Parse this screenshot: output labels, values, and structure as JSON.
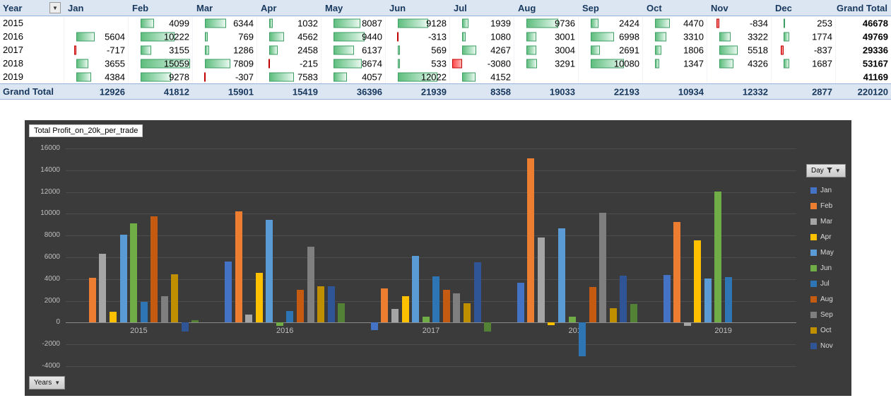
{
  "pivot": {
    "header": {
      "year_label": "Year",
      "months": [
        "Jan",
        "Feb",
        "Mar",
        "Apr",
        "May",
        "Jun",
        "Jul",
        "Aug",
        "Sep",
        "Oct",
        "Nov",
        "Dec"
      ],
      "grand_total_label": "Grand Total"
    },
    "rows": [
      {
        "year": "2015",
        "values": [
          null,
          4099,
          6344,
          1032,
          8087,
          9128,
          1939,
          9736,
          2424,
          4470,
          -834,
          253
        ],
        "total": 46678
      },
      {
        "year": "2016",
        "values": [
          5604,
          10222,
          769,
          4562,
          9440,
          -313,
          1080,
          3001,
          6998,
          3310,
          3322,
          1774
        ],
        "total": 49769
      },
      {
        "year": "2017",
        "values": [
          -717,
          3155,
          1286,
          2458,
          6137,
          569,
          4267,
          3004,
          2691,
          1806,
          5518,
          -837
        ],
        "total": 29336
      },
      {
        "year": "2018",
        "values": [
          3655,
          15059,
          7809,
          -215,
          8674,
          533,
          -3080,
          3291,
          10080,
          1347,
          4326,
          1687
        ],
        "total": 53167
      },
      {
        "year": "2019",
        "values": [
          4384,
          9278,
          -307,
          7583,
          4057,
          12022,
          4152,
          null,
          null,
          null,
          null,
          null
        ],
        "total": 41169
      }
    ],
    "grand_total_row": {
      "label": "Grand Total",
      "values": [
        12926,
        41812,
        15901,
        15419,
        36396,
        21939,
        8358,
        19033,
        22193,
        10934,
        12332,
        2877
      ],
      "total": 220120
    },
    "bar_colors": {
      "positive": "#5FBE7E",
      "negative": "#FF4B4B"
    }
  },
  "chart": {
    "title": "Total Profit_on_20k_per_trade",
    "years_button_label": "Years",
    "legend_button_label": "Day",
    "legend_items": [
      "Jan",
      "Feb",
      "Mar",
      "Apr",
      "May",
      "Jun",
      "Jul",
      "Aug",
      "Sep",
      "Oct",
      "Nov"
    ],
    "background": "#3B3B3B"
  },
  "chart_data": {
    "type": "bar",
    "title": "Total Profit_on_20k_per_trade",
    "categories": [
      "2015",
      "2016",
      "2017",
      "2018",
      "2019"
    ],
    "series": [
      {
        "name": "Jan",
        "color": "#4472C4",
        "values": [
          null,
          5604,
          -717,
          3655,
          4384
        ]
      },
      {
        "name": "Feb",
        "color": "#ED7D31",
        "values": [
          4099,
          10222,
          3155,
          15059,
          9278
        ]
      },
      {
        "name": "Mar",
        "color": "#A5A5A5",
        "values": [
          6344,
          769,
          1286,
          7809,
          -307
        ]
      },
      {
        "name": "Apr",
        "color": "#FFC000",
        "values": [
          1032,
          4562,
          2458,
          -215,
          7583
        ]
      },
      {
        "name": "May",
        "color": "#5B9BD5",
        "values": [
          8087,
          9440,
          6137,
          8674,
          4057
        ]
      },
      {
        "name": "Jun",
        "color": "#70AD47",
        "values": [
          9128,
          -313,
          569,
          533,
          12022
        ]
      },
      {
        "name": "Jul",
        "color": "#2E75B6",
        "values": [
          1939,
          1080,
          4267,
          -3080,
          4152
        ]
      },
      {
        "name": "Aug",
        "color": "#C55A11",
        "values": [
          9736,
          3001,
          3004,
          3291,
          null
        ]
      },
      {
        "name": "Sep",
        "color": "#7F7F7F",
        "values": [
          2424,
          6998,
          2691,
          10080,
          null
        ]
      },
      {
        "name": "Oct",
        "color": "#BF8F00",
        "values": [
          4470,
          3310,
          1806,
          1347,
          null
        ]
      },
      {
        "name": "Nov",
        "color": "#2F5597",
        "values": [
          -834,
          3322,
          5518,
          4326,
          null
        ]
      },
      {
        "name": "Dec",
        "color": "#538135",
        "values": [
          253,
          1774,
          -837,
          1687,
          null
        ]
      }
    ],
    "xlabel": "",
    "ylabel": "",
    "ylim": [
      -4000,
      16000
    ],
    "yticks": [
      16000,
      14000,
      12000,
      10000,
      8000,
      6000,
      4000,
      2000,
      0,
      -2000,
      -4000
    ],
    "grid": true,
    "legend_position": "right",
    "legend_title": "Day"
  }
}
